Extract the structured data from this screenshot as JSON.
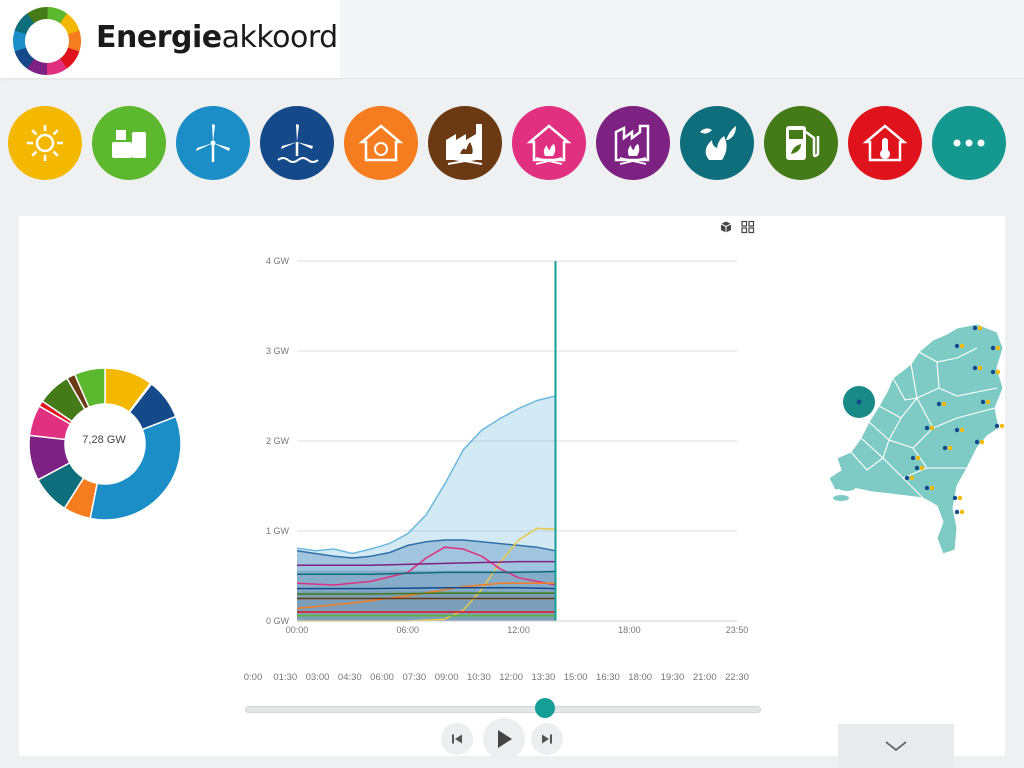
{
  "brand": {
    "bold": "Energie",
    "regular": "akkoord"
  },
  "categories": [
    {
      "name": "solar",
      "icon": "sun-icon",
      "color": "#f5b800"
    },
    {
      "name": "biomass",
      "icon": "tanks-icon",
      "color": "#5cb82e"
    },
    {
      "name": "wind-onshore",
      "icon": "wind-turbine-icon",
      "color": "#1c8ec7"
    },
    {
      "name": "wind-offshore",
      "icon": "offshore-wind-icon",
      "color": "#154a8a"
    },
    {
      "name": "heat-pump",
      "icon": "heat-house-icon",
      "color": "#f57d1f"
    },
    {
      "name": "coal",
      "icon": "coal-factory-icon",
      "color": "#6b3a15"
    },
    {
      "name": "gas-house",
      "icon": "gas-house-icon",
      "color": "#e0307f"
    },
    {
      "name": "gas-industry",
      "icon": "gas-factory-icon",
      "color": "#7d2183"
    },
    {
      "name": "bio-fire",
      "icon": "leaf-fire-icon",
      "color": "#0f6e7c"
    },
    {
      "name": "biofuel",
      "icon": "fuel-pump-icon",
      "color": "#447a18"
    },
    {
      "name": "heating",
      "icon": "thermometer-house-icon",
      "color": "#e0131d"
    },
    {
      "name": "more",
      "icon": "more-icon",
      "color": "#15988f"
    }
  ],
  "donut": {
    "center_label": "7,28 GW",
    "segments": [
      {
        "name": "solar",
        "color": "#f5b800",
        "value": 0.102
      },
      {
        "name": "biomass",
        "color": "#5cb82e",
        "value": 0.0025
      },
      {
        "name": "wind-offshore",
        "color": "#154a8a",
        "value": 0.086
      },
      {
        "name": "wind-onshore",
        "color": "#1c8ec7",
        "value": 0.339
      },
      {
        "name": "heat-pump",
        "color": "#f57d1f",
        "value": 0.058
      },
      {
        "name": "bio-fire",
        "color": "#0f6e7c",
        "value": 0.082
      },
      {
        "name": "gas-industry",
        "color": "#7d2183",
        "value": 0.096
      },
      {
        "name": "gas-house",
        "color": "#e0307f",
        "value": 0.065
      },
      {
        "name": "heating",
        "color": "#e0131d",
        "value": 0.012
      },
      {
        "name": "biofuel",
        "color": "#447a18",
        "value": 0.071
      },
      {
        "name": "coal",
        "color": "#6b3a15",
        "value": 0.018
      },
      {
        "name": "biomass-2",
        "color": "#5cb82e",
        "value": 0.065
      }
    ]
  },
  "chart_data": {
    "type": "area",
    "y_ticks": [
      "0 GW",
      "1 GW",
      "2 GW",
      "3 GW",
      "4 GW"
    ],
    "x_ticks": [
      "00:00",
      "06:00",
      "12:00",
      "18:00",
      "23:50"
    ],
    "ylim": [
      0,
      4
    ],
    "xlim": [
      0,
      23.83
    ],
    "current_hour": 14.0,
    "series": [
      {
        "color": "#6db8dd",
        "fill": true,
        "points": [
          [
            0,
            0.81
          ],
          [
            1,
            0.78
          ],
          [
            2,
            0.8
          ],
          [
            3,
            0.75
          ],
          [
            4,
            0.8
          ],
          [
            5,
            0.86
          ],
          [
            6,
            0.97
          ],
          [
            7,
            1.18
          ],
          [
            8,
            1.52
          ],
          [
            9,
            1.9
          ],
          [
            10,
            2.12
          ],
          [
            11,
            2.25
          ],
          [
            12,
            2.36
          ],
          [
            13,
            2.45
          ],
          [
            14,
            2.5
          ]
        ]
      },
      {
        "color": "#2f6fa8",
        "fill": true,
        "points": [
          [
            0,
            0.78
          ],
          [
            1,
            0.75
          ],
          [
            2,
            0.72
          ],
          [
            3,
            0.7
          ],
          [
            4,
            0.72
          ],
          [
            5,
            0.76
          ],
          [
            6,
            0.84
          ],
          [
            7,
            0.88
          ],
          [
            8,
            0.9
          ],
          [
            9,
            0.9
          ],
          [
            10,
            0.88
          ],
          [
            11,
            0.86
          ],
          [
            12,
            0.84
          ],
          [
            13,
            0.82
          ],
          [
            14,
            0.78
          ]
        ]
      },
      {
        "color": "#e8c84a",
        "fill": false,
        "points": [
          [
            0,
            0.0
          ],
          [
            6,
            0.0
          ],
          [
            8,
            0.02
          ],
          [
            9,
            0.12
          ],
          [
            10,
            0.35
          ],
          [
            11,
            0.65
          ],
          [
            12,
            0.9
          ],
          [
            13,
            1.03
          ],
          [
            14,
            1.02
          ]
        ]
      },
      {
        "color": "#e0307f",
        "fill": false,
        "points": [
          [
            0,
            0.42
          ],
          [
            2,
            0.4
          ],
          [
            4,
            0.44
          ],
          [
            6,
            0.54
          ],
          [
            7,
            0.7
          ],
          [
            8,
            0.82
          ],
          [
            9,
            0.8
          ],
          [
            10,
            0.72
          ],
          [
            11,
            0.58
          ],
          [
            12,
            0.48
          ],
          [
            13,
            0.44
          ],
          [
            14,
            0.4
          ]
        ]
      },
      {
        "color": "#7d2183",
        "fill": false,
        "points": [
          [
            0,
            0.62
          ],
          [
            4,
            0.62
          ],
          [
            8,
            0.64
          ],
          [
            12,
            0.66
          ],
          [
            14,
            0.66
          ]
        ]
      },
      {
        "color": "#0f6e7c",
        "fill": false,
        "points": [
          [
            0,
            0.52
          ],
          [
            4,
            0.52
          ],
          [
            8,
            0.54
          ],
          [
            12,
            0.54
          ],
          [
            14,
            0.55
          ]
        ]
      },
      {
        "color": "#f57d1f",
        "fill": false,
        "points": [
          [
            0,
            0.14
          ],
          [
            3,
            0.2
          ],
          [
            6,
            0.28
          ],
          [
            9,
            0.38
          ],
          [
            11,
            0.42
          ],
          [
            14,
            0.42
          ]
        ]
      },
      {
        "color": "#154a8a",
        "fill": false,
        "points": [
          [
            0,
            0.36
          ],
          [
            4,
            0.36
          ],
          [
            8,
            0.37
          ],
          [
            12,
            0.37
          ],
          [
            14,
            0.36
          ]
        ]
      },
      {
        "color": "#447a18",
        "fill": false,
        "points": [
          [
            0,
            0.3
          ],
          [
            4,
            0.3
          ],
          [
            8,
            0.31
          ],
          [
            12,
            0.31
          ],
          [
            14,
            0.31
          ]
        ]
      },
      {
        "color": "#6b3a15",
        "fill": false,
        "points": [
          [
            0,
            0.25
          ],
          [
            4,
            0.25
          ],
          [
            8,
            0.25
          ],
          [
            12,
            0.25
          ],
          [
            14,
            0.25
          ]
        ]
      },
      {
        "color": "#e0131d",
        "fill": false,
        "points": [
          [
            0,
            0.1
          ],
          [
            4,
            0.1
          ],
          [
            8,
            0.1
          ],
          [
            12,
            0.1
          ],
          [
            14,
            0.1
          ]
        ]
      },
      {
        "color": "#5cb82e",
        "fill": false,
        "points": [
          [
            0,
            0.06
          ],
          [
            4,
            0.06
          ],
          [
            8,
            0.06
          ],
          [
            12,
            0.06
          ],
          [
            14,
            0.06
          ]
        ]
      }
    ]
  },
  "timeline": {
    "labels": [
      "0:00",
      "01:30",
      "03:00",
      "04:30",
      "06:00",
      "07:30",
      "09:00",
      "10:30",
      "12:00",
      "13:30",
      "15:00",
      "16:30",
      "18:00",
      "19:30",
      "21:00",
      "22:30"
    ],
    "position": 0.582
  },
  "controls": {
    "prev": "skip-back-icon",
    "play": "play-icon",
    "next": "skip-forward-icon"
  },
  "map": {
    "accent": "#7ecbc6",
    "dark": "#1a8a86"
  }
}
